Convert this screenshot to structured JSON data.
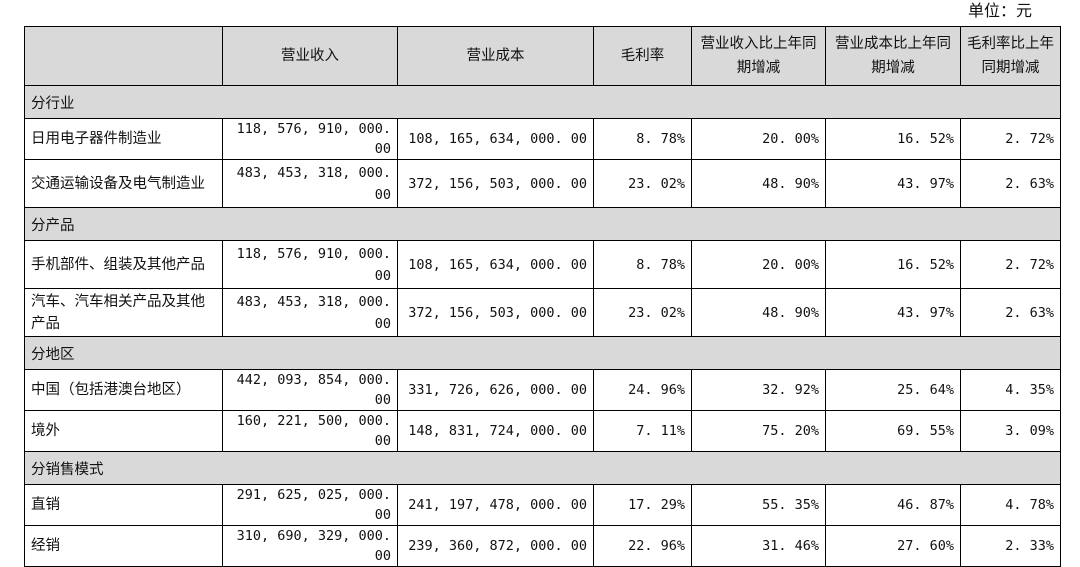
{
  "unit_label": "单位：元",
  "columns": [
    "",
    "营业收入",
    "营业成本",
    "毛利率",
    "营业收入比上年同期增减",
    "营业成本比上年同期增减",
    "毛利率比上年同期增减"
  ],
  "sections": [
    {
      "title": "分行业",
      "rows": [
        {
          "label": "日用电子器件制造业",
          "revenue": "118, 576, 910, 000. 00",
          "cost": "108, 165, 634, 000. 00",
          "margin": "8. 78%",
          "rev_change": "20. 00%",
          "cost_change": "16. 52%",
          "margin_change": "2. 72%"
        },
        {
          "label": "交通运输设备及电气制造业",
          "revenue": "483, 453, 318, 000. 00",
          "cost": "372, 156, 503, 000. 00",
          "margin": "23. 02%",
          "rev_change": "48. 90%",
          "cost_change": "43. 97%",
          "margin_change": "2. 63%"
        }
      ]
    },
    {
      "title": "分产品",
      "rows": [
        {
          "label": "手机部件、组装及其他产品",
          "revenue": "118, 576, 910, 000. 00",
          "cost": "108, 165, 634, 000. 00",
          "margin": "8. 78%",
          "rev_change": "20. 00%",
          "cost_change": "16. 52%",
          "margin_change": "2. 72%"
        },
        {
          "label": "汽车、汽车相关产品及其他产品",
          "revenue": "483, 453, 318, 000. 00",
          "cost": "372, 156, 503, 000. 00",
          "margin": "23. 02%",
          "rev_change": "48. 90%",
          "cost_change": "43. 97%",
          "margin_change": "2. 63%"
        }
      ]
    },
    {
      "title": "分地区",
      "rows": [
        {
          "label": "中国（包括港澳台地区）",
          "revenue": "442, 093, 854, 000. 00",
          "cost": "331, 726, 626, 000. 00",
          "margin": "24. 96%",
          "rev_change": "32. 92%",
          "cost_change": "25. 64%",
          "margin_change": "4. 35%"
        },
        {
          "label": "境外",
          "revenue": "160, 221, 500, 000. 00",
          "cost": "148, 831, 724, 000. 00",
          "margin": "7. 11%",
          "rev_change": "75. 20%",
          "cost_change": "69. 55%",
          "margin_change": "3. 09%"
        }
      ]
    },
    {
      "title": "分销售模式",
      "rows": [
        {
          "label": "直销",
          "revenue": "291, 625, 025, 000. 00",
          "cost": "241, 197, 478, 000. 00",
          "margin": "17. 29%",
          "rev_change": "55. 35%",
          "cost_change": "46. 87%",
          "margin_change": "4. 78%"
        },
        {
          "label": "经销",
          "revenue": "310, 690, 329, 000. 00",
          "cost": "239, 360, 872, 000. 00",
          "margin": "22. 96%",
          "rev_change": "31. 46%",
          "cost_change": "27. 60%",
          "margin_change": "2. 33%"
        }
      ]
    }
  ]
}
